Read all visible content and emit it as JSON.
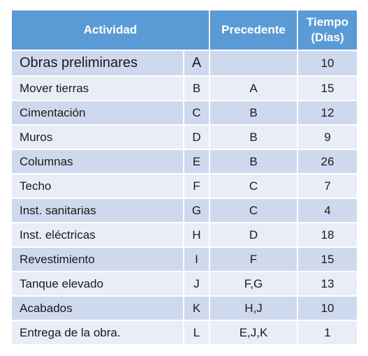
{
  "table": {
    "headers": {
      "actividad": "Actividad",
      "precedente": "Precedente",
      "tiempo_line1": "Tiempo",
      "tiempo_line2": "(Días)"
    },
    "rows": [
      {
        "actividad": "Obras preliminares",
        "codigo": "A",
        "precedente": "",
        "tiempo": "10"
      },
      {
        "actividad": "Mover tierras",
        "codigo": "B",
        "precedente": "A",
        "tiempo": "15"
      },
      {
        "actividad": "Cimentación",
        "codigo": "C",
        "precedente": "B",
        "tiempo": "12"
      },
      {
        "actividad": "Muros",
        "codigo": "D",
        "precedente": "B",
        "tiempo": "9"
      },
      {
        "actividad": "Columnas",
        "codigo": "E",
        "precedente": "B",
        "tiempo": "26"
      },
      {
        "actividad": "Techo",
        "codigo": "F",
        "precedente": "C",
        "tiempo": "7"
      },
      {
        "actividad": "Inst. sanitarias",
        "codigo": "G",
        "precedente": "C",
        "tiempo": "4"
      },
      {
        "actividad": "Inst. eléctricas",
        "codigo": "H",
        "precedente": "D",
        "tiempo": "18"
      },
      {
        "actividad": "Revestimiento",
        "codigo": "I",
        "precedente": "F",
        "tiempo": "15"
      },
      {
        "actividad": "Tanque elevado",
        "codigo": "J",
        "precedente": "F,G",
        "tiempo": "13"
      },
      {
        "actividad": "Acabados",
        "codigo": "K",
        "precedente": "H,J",
        "tiempo": "10"
      },
      {
        "actividad": "Entrega de la obra.",
        "codigo": "L",
        "precedente": "E,J,K",
        "tiempo": "1"
      }
    ],
    "colors": {
      "header": "#5b9bd5",
      "row_odd": "#cfd9ee",
      "row_even": "#e9edf6"
    }
  }
}
